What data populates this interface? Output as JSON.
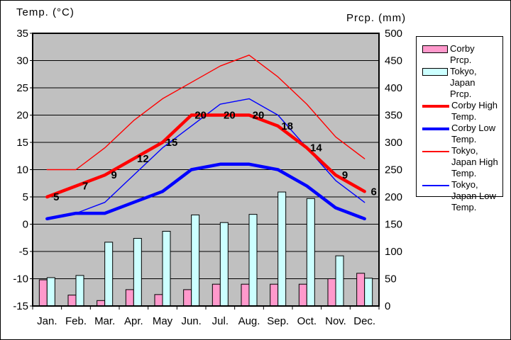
{
  "titles": {
    "left": "Temp. (°C)",
    "right": "Prcp.  (mm)"
  },
  "legend": {
    "items": [
      {
        "label": "Corby Prcp.",
        "swatch": "bar",
        "color": "#FF99CC"
      },
      {
        "label": "Tokyo, Japan Prcp.",
        "swatch": "bar",
        "color": "#CCFFFF"
      },
      {
        "label": "Corby High Temp.",
        "swatch": "thick-line",
        "color": "#FF0000"
      },
      {
        "label": "Corby Low Temp.",
        "swatch": "thick-line",
        "color": "#0000FF"
      },
      {
        "label": "Tokyo, Japan High Temp.",
        "swatch": "thin-line",
        "color": "#FF0000"
      },
      {
        "label": "Tokyo, Japan Low Temp.",
        "swatch": "thin-line",
        "color": "#0000FF"
      }
    ]
  },
  "chart_data": {
    "type": "combo bar+line climate chart",
    "categories": [
      "Jan.",
      "Feb.",
      "Mar.",
      "Apr.",
      "May",
      "Jun.",
      "Jul.",
      "Aug.",
      "Sep.",
      "Oct.",
      "Nov.",
      "Dec."
    ],
    "left_axis": {
      "title": "Temp. (°C)",
      "min": -15,
      "max": 35,
      "step": 5,
      "ticks": [
        35,
        30,
        25,
        20,
        15,
        10,
        5,
        0,
        -5,
        -10,
        -15
      ]
    },
    "right_axis": {
      "title": "Prcp. (mm)",
      "min": 0,
      "max": 500,
      "step": 50,
      "ticks": [
        500,
        450,
        400,
        350,
        300,
        250,
        200,
        150,
        100,
        50,
        0
      ]
    },
    "series": [
      {
        "name": "Corby Prcp.",
        "type": "bar",
        "axis": "right",
        "color": "#FF99CC",
        "values": [
          48,
          20,
          10,
          30,
          21,
          30,
          40,
          40,
          40,
          40,
          50,
          60
        ]
      },
      {
        "name": "Tokyo, Japan Prcp.",
        "type": "bar",
        "axis": "right",
        "color": "#CCFFFF",
        "values": [
          52,
          56,
          117,
          124,
          137,
          167,
          153,
          168,
          209,
          197,
          92,
          51
        ]
      },
      {
        "name": "Tokyo, Japan High Temp.",
        "type": "line",
        "axis": "left",
        "color": "#FF0000",
        "stroke": "thin",
        "values": [
          10,
          10,
          14,
          19,
          23,
          26,
          29,
          31,
          27,
          22,
          16,
          12
        ]
      },
      {
        "name": "Tokyo, Japan Low Temp.",
        "type": "line",
        "axis": "left",
        "color": "#0000FF",
        "stroke": "thin",
        "values": [
          1,
          2,
          4,
          9,
          14,
          18,
          22,
          23,
          20,
          14,
          8,
          4
        ]
      },
      {
        "name": "Corby Low Temp.",
        "type": "line",
        "axis": "left",
        "color": "#0000FF",
        "stroke": "thick",
        "values": [
          1,
          2,
          2,
          4,
          6,
          10,
          11,
          11,
          10,
          7,
          3,
          1
        ]
      },
      {
        "name": "Corby High Temp.",
        "type": "line",
        "axis": "left",
        "color": "#FF0000",
        "stroke": "thick",
        "values": [
          5,
          7,
          9,
          12,
          15,
          20,
          20,
          20,
          18,
          14,
          9,
          6
        ],
        "point_labels": [
          "5",
          "7",
          "9",
          "12",
          "15",
          "20",
          "20",
          "20",
          "18",
          "14",
          "9",
          "6"
        ]
      }
    ],
    "plot_background": "#C0C0C0",
    "grid": true,
    "legend_position": "right"
  }
}
